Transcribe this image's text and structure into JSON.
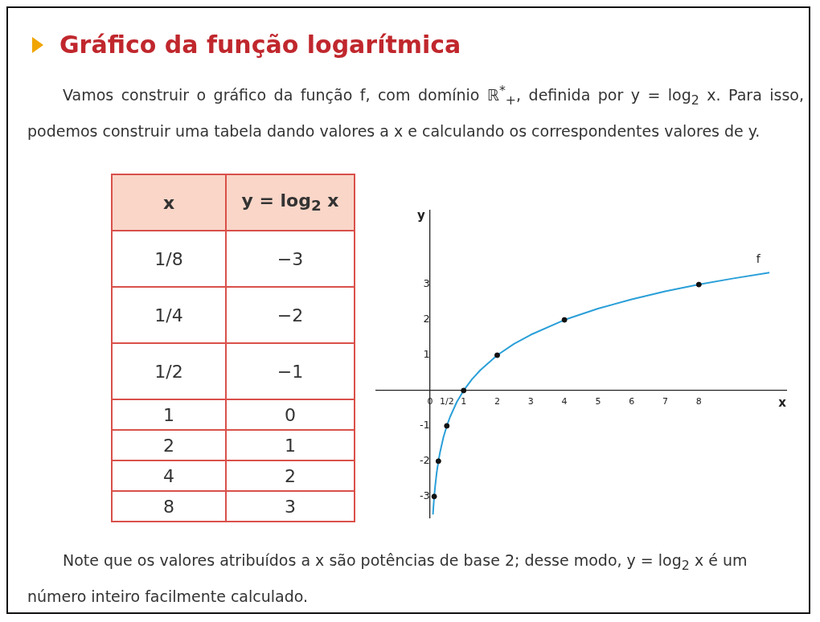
{
  "chart_data": {
    "type": "line",
    "title": "Gráfico da função logarítmica",
    "xlabel": "x",
    "ylabel": "y",
    "xlim": [
      -1.6,
      10.6
    ],
    "ylim": [
      -3.6,
      5.1
    ],
    "xticks": [
      0,
      {
        "value": 0.5,
        "label": "1/2"
      },
      1,
      2,
      3,
      4,
      5,
      6,
      7,
      8
    ],
    "yticks": [
      -3,
      -2,
      -1,
      1,
      2,
      3
    ],
    "grid": false,
    "legend": false,
    "series": [
      {
        "name": "f",
        "color": "#2a9fd8",
        "marker": "none",
        "x": [
          0.088,
          0.1,
          0.125,
          0.15,
          0.2,
          0.25,
          0.3,
          0.4,
          0.5,
          0.6,
          0.8,
          1,
          1.25,
          1.5,
          2,
          2.5,
          3,
          4,
          5,
          6,
          7,
          8,
          9,
          10.1
        ],
        "values": [
          -3.51,
          -3.32,
          -3,
          -2.74,
          -2.32,
          -2,
          -1.74,
          -1.32,
          -1,
          -0.74,
          -0.32,
          0,
          0.32,
          0.58,
          1,
          1.32,
          1.58,
          2,
          2.32,
          2.58,
          2.81,
          3,
          3.17,
          3.34
        ]
      },
      {
        "type": "scatter",
        "color": "#111111",
        "marker": "circle",
        "x": [
          0.125,
          0.25,
          0.5,
          1,
          2,
          4,
          8
        ],
        "values": [
          -3,
          -2,
          -1,
          0,
          1,
          2,
          3
        ]
      }
    ],
    "annotations": [
      "Vamos construir o gráfico da função f, com domínio ℝ$^{*}$$_{+}$, definida por y = log$_{2}$ x. Para isso, podemos construir uma tabela dando valores a x e calculando os correspondentes valores de y.",
      "x",
      "y = log$_{2}$ x",
      "1/8",
      "−3",
      "1/4",
      "−2",
      "1/2",
      "−1",
      "1",
      "0",
      "2",
      "1",
      "4",
      "2",
      "8",
      "3",
      "Note que os valores atribuídos a x são potências de base 2; desse modo, y = log$_{2}$ x é um número inteiro facilmente calculado."
    ]
  }
}
